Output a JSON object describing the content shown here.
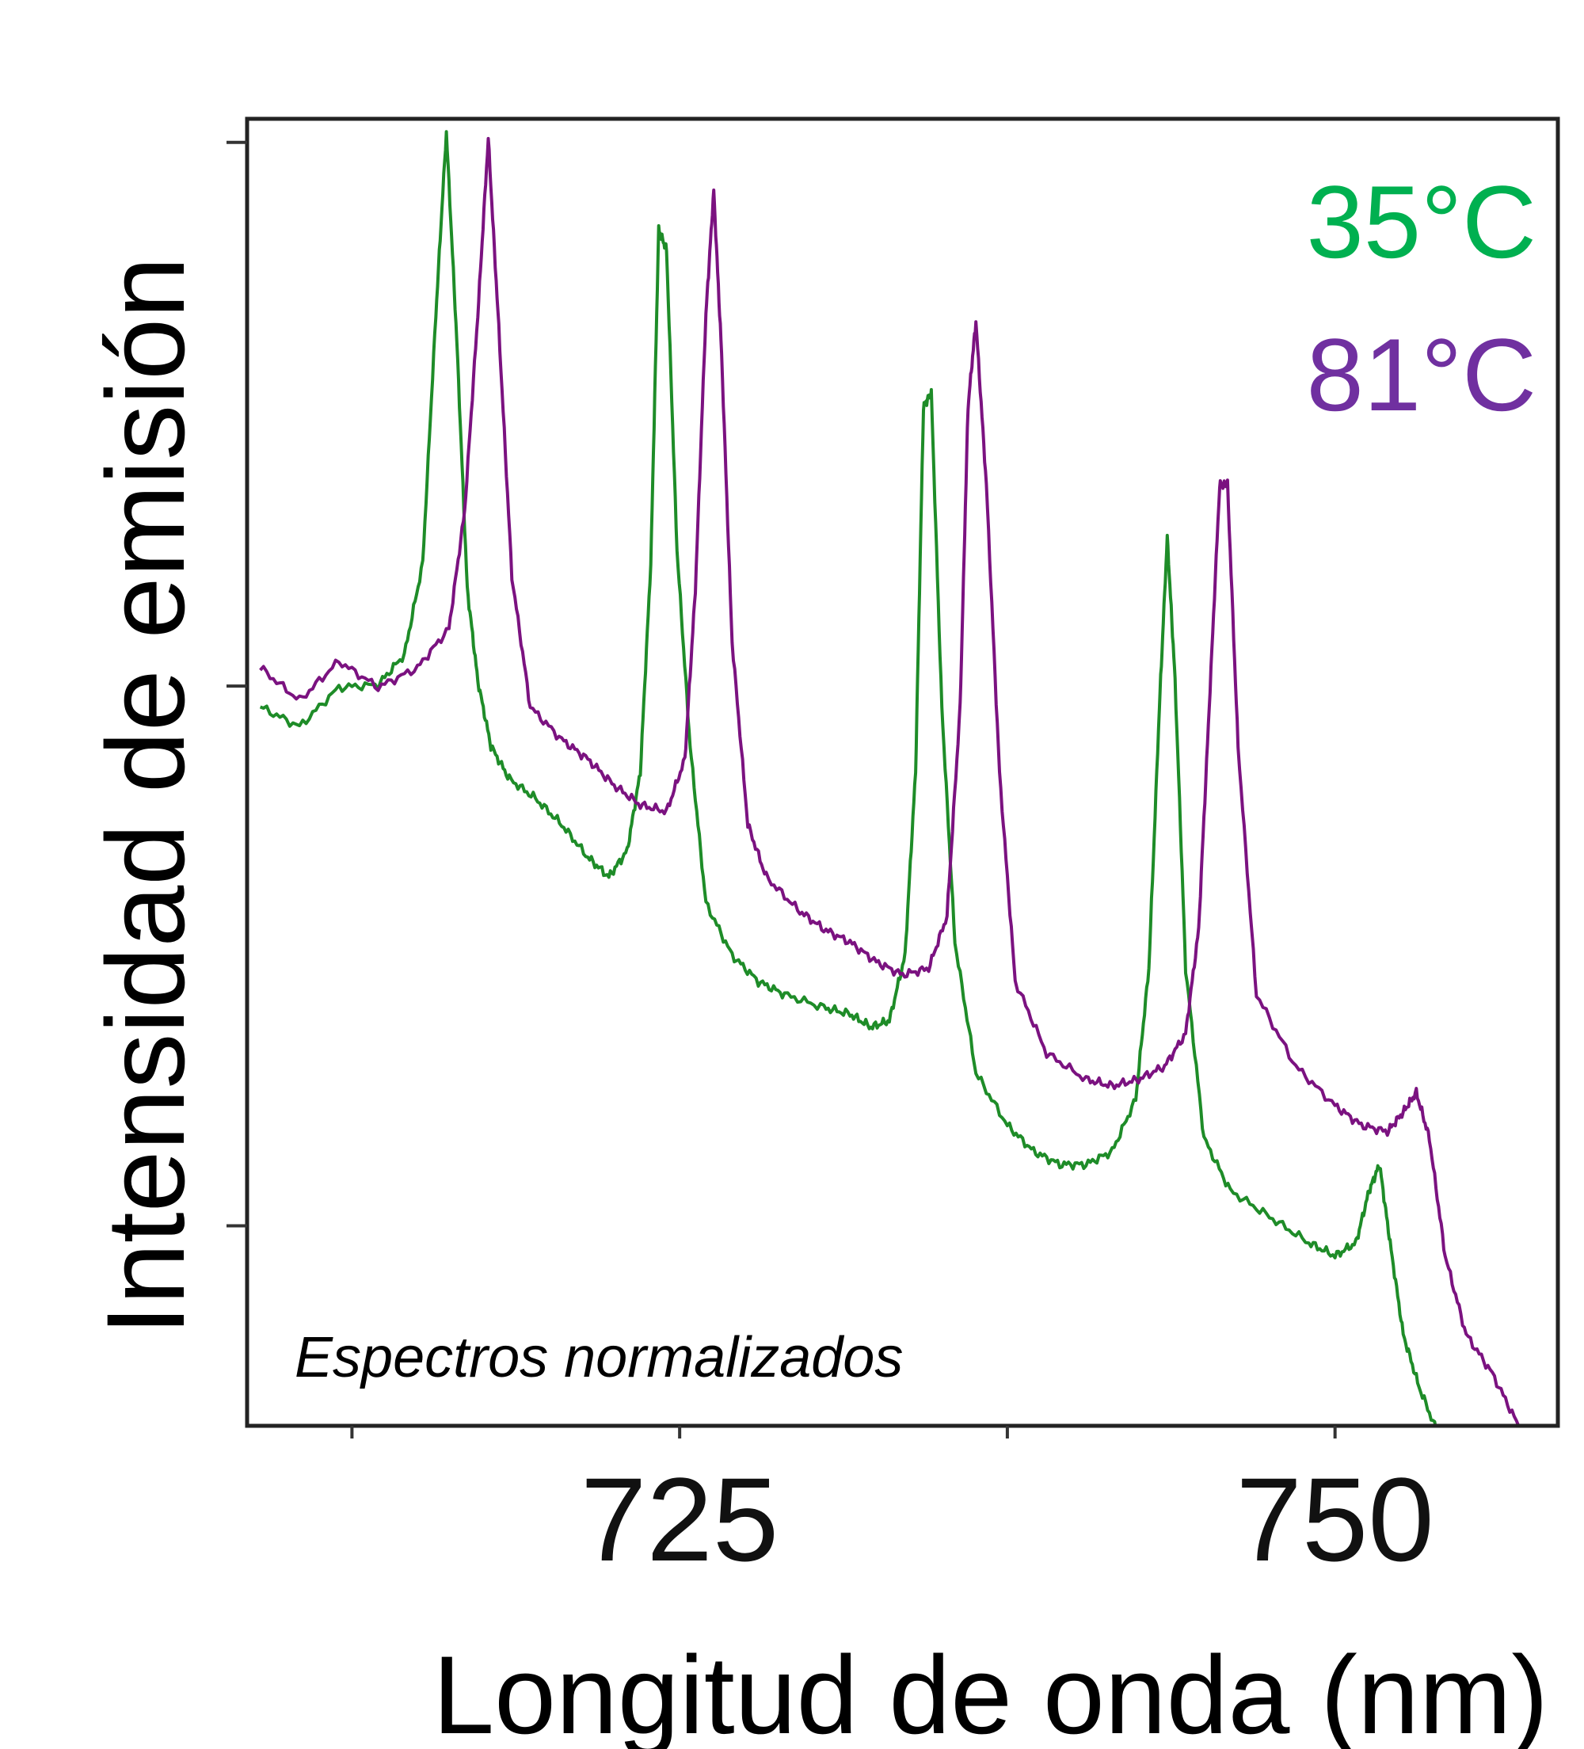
{
  "chart_data": {
    "type": "line",
    "xlabel": "Longitud de onda (nm)",
    "ylabel": "Intensidad de emisión",
    "annotation": "Espectros normalizados",
    "xlim": [
      708.5,
      758.5
    ],
    "ylim": [
      0,
      1
    ],
    "x_ticks": [
      712.5,
      725,
      737.5,
      750
    ],
    "x_tick_labels": [
      "725",
      "750"
    ],
    "y_ticks": [
      0.153,
      0.566,
      0.982
    ],
    "grid": false,
    "legend_position": "top-right",
    "series": [
      {
        "name": "35°C",
        "color": "#1e8c28",
        "legend_color": "#00b050",
        "x": [
          709.0,
          710.5,
          712.0,
          713.5,
          714.5,
          715.2,
          715.7,
          716.1,
          716.5,
          716.9,
          717.3,
          717.8,
          718.5,
          719.5,
          720.5,
          721.5,
          722.3,
          723.0,
          723.5,
          723.9,
          724.2,
          724.5,
          724.9,
          725.4,
          726.0,
          727.0,
          728.0,
          729.0,
          730.5,
          731.5,
          732.3,
          733.0,
          733.6,
          734.0,
          734.3,
          734.6,
          735.0,
          735.5,
          736.3,
          737.5,
          738.5,
          739.5,
          740.5,
          741.5,
          742.4,
          742.9,
          743.3,
          743.6,
          743.9,
          744.3,
          745.0,
          746.0,
          747.5,
          749.0,
          750.0,
          750.8,
          751.3,
          751.7,
          752.1,
          752.6,
          753.2,
          754.0
        ],
        "y": [
          0.55,
          0.535,
          0.565,
          0.567,
          0.59,
          0.66,
          0.85,
          0.99,
          0.83,
          0.64,
          0.57,
          0.52,
          0.495,
          0.48,
          0.46,
          0.435,
          0.42,
          0.44,
          0.5,
          0.66,
          0.915,
          0.9,
          0.67,
          0.52,
          0.4,
          0.36,
          0.34,
          0.33,
          0.32,
          0.315,
          0.305,
          0.31,
          0.36,
          0.5,
          0.78,
          0.79,
          0.55,
          0.37,
          0.27,
          0.23,
          0.21,
          0.2,
          0.2,
          0.21,
          0.25,
          0.35,
          0.55,
          0.68,
          0.57,
          0.35,
          0.22,
          0.18,
          0.16,
          0.14,
          0.13,
          0.14,
          0.18,
          0.2,
          0.14,
          0.07,
          0.03,
          -0.01
        ]
      },
      {
        "name": "81°C",
        "color": "#7b1280",
        "legend_color": "#7030a0",
        "x": [
          709.0,
          710.5,
          712.0,
          713.5,
          715.0,
          716.2,
          716.8,
          717.3,
          717.7,
          718.1,
          718.6,
          719.3,
          720.5,
          721.5,
          722.5,
          723.5,
          724.5,
          725.2,
          725.6,
          726.0,
          726.3,
          726.6,
          727.0,
          727.6,
          728.3,
          729.5,
          730.5,
          731.5,
          732.5,
          733.5,
          734.5,
          735.2,
          735.7,
          736.0,
          736.3,
          736.7,
          737.2,
          737.8,
          739.0,
          740.5,
          741.5,
          742.5,
          743.5,
          744.3,
          744.8,
          745.2,
          745.6,
          745.9,
          746.3,
          747.0,
          748.5,
          750.0,
          751.0,
          752.0,
          752.6,
          753.1,
          753.6,
          754.2,
          755.0,
          756.0,
          757.0
        ],
        "y": [
          0.58,
          0.555,
          0.585,
          0.565,
          0.58,
          0.61,
          0.7,
          0.85,
          0.985,
          0.84,
          0.65,
          0.55,
          0.525,
          0.51,
          0.49,
          0.475,
          0.47,
          0.51,
          0.64,
          0.85,
          0.945,
          0.82,
          0.6,
          0.46,
          0.42,
          0.395,
          0.38,
          0.37,
          0.355,
          0.345,
          0.35,
          0.39,
          0.55,
          0.78,
          0.845,
          0.72,
          0.5,
          0.34,
          0.285,
          0.265,
          0.26,
          0.265,
          0.275,
          0.3,
          0.38,
          0.55,
          0.72,
          0.72,
          0.52,
          0.33,
          0.275,
          0.245,
          0.23,
          0.225,
          0.24,
          0.255,
          0.22,
          0.13,
          0.07,
          0.04,
          0.0
        ]
      }
    ]
  }
}
